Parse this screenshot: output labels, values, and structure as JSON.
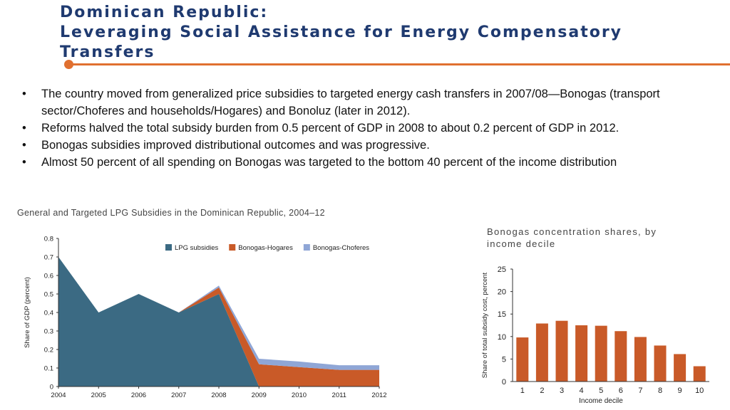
{
  "slide": {
    "title_line1": "Dominican Republic:",
    "title_line2": "Leveraging Social Assistance for Energy Compensatory",
    "title_line3": "Transfers",
    "accent_color": "#e07030",
    "title_color": "#1f3a70",
    "bullets": [
      "The country moved from generalized price subsidies to targeted energy cash transfers in 2007/08—Bonogas (transport sector/Choferes and households/Hogares) and Bonoluz (later in 2012).",
      "Reforms halved the total subsidy burden from 0.5 percent of GDP in 2008 to about 0.2 percent of GDP in 2012.",
      "Bonogas subsidies improved distributional outcomes and was progressive.",
      "Almost 50 percent of all spending on Bonogas was targeted to the bottom 40 percent of the income distribution"
    ]
  },
  "chart_data": [
    {
      "type": "area",
      "stacked": true,
      "title": "General and Targeted LPG Subsidies in the Dominican Republic, 2004–12",
      "ylabel": "Share of GDP (percent)",
      "xlabel": "",
      "x": [
        "2004",
        "2005",
        "2006",
        "2007",
        "2008",
        "2009",
        "2010",
        "2011",
        "2012"
      ],
      "ylim": [
        0,
        0.8
      ],
      "yticks": [
        "0",
        "0.1",
        "0.2",
        "0.3",
        "0.4",
        "0.5",
        "0.6",
        "0.7",
        "0.8"
      ],
      "legend_position": "top-right",
      "grid": false,
      "series": [
        {
          "name": "LPG subsidies",
          "color": "#3b6a83",
          "values": [
            0.7,
            0.4,
            0.5,
            0.4,
            0.5,
            0.0,
            0.0,
            0.0,
            0.0
          ]
        },
        {
          "name": "Bonogas-Hogares",
          "color": "#c95a28",
          "values": [
            0.0,
            0.0,
            0.0,
            0.0,
            0.035,
            0.12,
            0.105,
            0.09,
            0.09
          ]
        },
        {
          "name": "Bonogas-Choferes",
          "color": "#8fa6d6",
          "values": [
            0.0,
            0.0,
            0.0,
            0.0,
            0.01,
            0.03,
            0.03,
            0.025,
            0.025
          ]
        }
      ]
    },
    {
      "type": "bar",
      "title_line1": "Bonogas concentration shares, by",
      "title_line2": "income decile",
      "xlabel": "Income decile",
      "ylabel": "Share of total subsidy cost, percent",
      "categories": [
        "1",
        "2",
        "3",
        "4",
        "5",
        "6",
        "7",
        "8",
        "9",
        "10"
      ],
      "values": [
        9.8,
        12.9,
        13.5,
        12.5,
        12.4,
        11.2,
        9.9,
        8.0,
        6.1,
        3.4
      ],
      "ylim": [
        0,
        25
      ],
      "yticks": [
        "0",
        "5",
        "10",
        "15",
        "20",
        "25"
      ],
      "bar_color": "#c95a28",
      "grid": false
    }
  ]
}
